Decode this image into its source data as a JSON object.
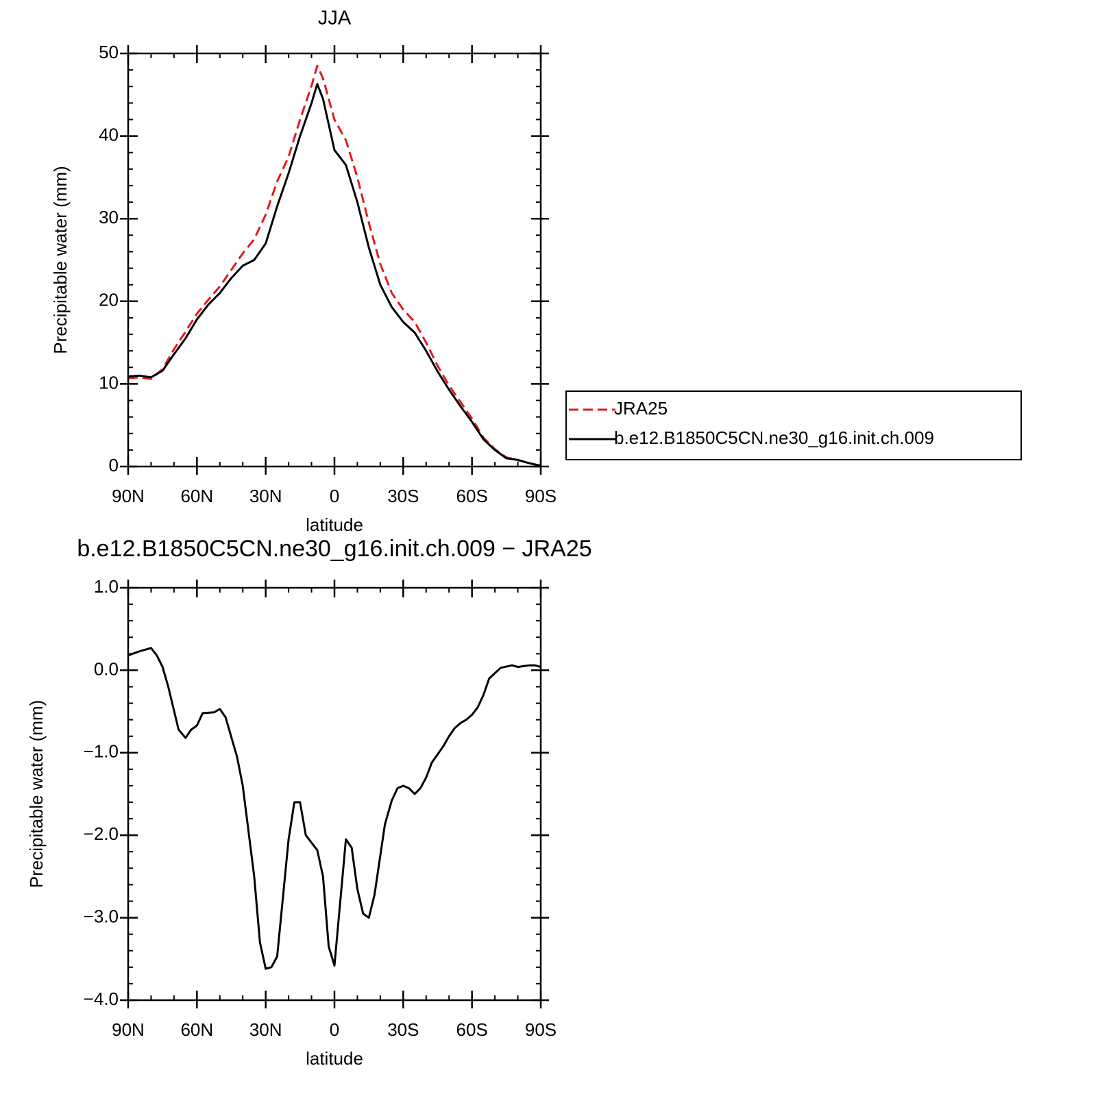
{
  "chart_data": [
    {
      "type": "line",
      "title": "JJA",
      "xlabel": "latitude",
      "ylabel": "Precipitable water (mm)",
      "x": [
        90,
        85,
        80,
        75,
        70,
        65,
        60,
        55,
        50,
        45,
        40,
        35,
        30,
        25,
        20,
        15,
        10,
        7.5,
        5,
        0,
        -5,
        -10,
        -15,
        -20,
        -25,
        -30,
        -35,
        -40,
        -45,
        -50,
        -55,
        -60,
        -65,
        -70,
        -75,
        -80,
        -85,
        -90
      ],
      "series": [
        {
          "name": "JRA25",
          "color": "#e31a1c",
          "line_style": "dashed",
          "values": [
            10.7,
            10.8,
            10.6,
            11.8,
            14.2,
            16.3,
            18.5,
            20.2,
            21.8,
            23.8,
            25.8,
            27.5,
            30.5,
            34.5,
            37.5,
            42.0,
            46.1,
            48.5,
            47.0,
            42.0,
            39.5,
            35.0,
            29.5,
            24.5,
            21.0,
            19.0,
            17.5,
            15.0,
            12.2,
            9.8,
            7.8,
            5.8,
            3.5,
            2.1,
            1.1,
            0.8,
            0.4,
            0.1
          ]
        },
        {
          "name": "b.e12.B1850C5CN.ne30_g16.init.ch.009",
          "color": "#000000",
          "line_style": "solid",
          "values": [
            10.9,
            11.0,
            10.8,
            11.6,
            13.6,
            15.5,
            17.8,
            19.6,
            21.0,
            22.8,
            24.3,
            25.0,
            27.0,
            31.5,
            35.5,
            40.0,
            44.0,
            46.3,
            44.5,
            38.3,
            36.5,
            32.0,
            26.5,
            22.0,
            19.3,
            17.5,
            16.2,
            14.0,
            11.5,
            9.3,
            7.3,
            5.4,
            3.3,
            2.0,
            1.0,
            0.8,
            0.4,
            0.1
          ]
        }
      ],
      "xlim": [
        90,
        -90
      ],
      "xticks": [
        {
          "value": 90,
          "label": "90N"
        },
        {
          "value": 60,
          "label": "60N"
        },
        {
          "value": 30,
          "label": "30N"
        },
        0,
        {
          "value": -30,
          "label": "30S"
        },
        {
          "value": -60,
          "label": "60S"
        },
        {
          "value": -90,
          "label": "90S"
        }
      ],
      "ylim": [
        0,
        50
      ],
      "yticks": [
        0,
        10,
        20,
        30,
        40,
        50
      ],
      "grid": false,
      "legend": "right"
    },
    {
      "type": "line",
      "title": "b.e12.B1850C5CN.ne30_g16.init.ch.009 − JRA25",
      "xlabel": "latitude",
      "ylabel": "Precipitable water (mm)",
      "x": [
        90,
        85,
        80,
        77.5,
        75,
        72.5,
        68,
        65,
        62.5,
        60,
        57.5,
        52.5,
        50,
        47.5,
        42.5,
        40,
        35,
        32.5,
        30,
        27.5,
        25,
        20,
        17.5,
        15,
        12.5,
        7.5,
        5,
        2.5,
        0,
        -5,
        -7.5,
        -10,
        -12.5,
        -15,
        -17.5,
        -22,
        -25,
        -27.5,
        -30,
        -32.5,
        -35,
        -37.5,
        -40,
        -42.5,
        -47.5,
        -50,
        -52.5,
        -55,
        -57.5,
        -60,
        -62.5,
        -65,
        -67.5,
        -72.5,
        -77.5,
        -80,
        -82.5,
        -85,
        -87.5,
        -90
      ],
      "series": [
        {
          "color": "#000000",
          "line_style": "solid",
          "values": [
            0.18,
            0.23,
            0.27,
            0.18,
            0.04,
            -0.2,
            -0.72,
            -0.82,
            -0.72,
            -0.67,
            -0.52,
            -0.51,
            -0.47,
            -0.57,
            -1.05,
            -1.4,
            -2.5,
            -3.3,
            -3.62,
            -3.6,
            -3.47,
            -2.05,
            -1.6,
            -1.6,
            -2.0,
            -2.18,
            -2.5,
            -3.35,
            -3.58,
            -2.05,
            -2.15,
            -2.65,
            -2.95,
            -3.0,
            -2.72,
            -1.87,
            -1.58,
            -1.43,
            -1.4,
            -1.43,
            -1.5,
            -1.43,
            -1.3,
            -1.12,
            -0.92,
            -0.8,
            -0.7,
            -0.64,
            -0.6,
            -0.54,
            -0.45,
            -0.3,
            -0.1,
            0.03,
            0.06,
            0.04,
            0.05,
            0.06,
            0.06,
            0.04
          ]
        }
      ],
      "xlim": [
        90,
        -90
      ],
      "xticks": [
        {
          "value": 90,
          "label": "90N"
        },
        {
          "value": 60,
          "label": "60N"
        },
        {
          "value": 30,
          "label": "30N"
        },
        0,
        {
          "value": -30,
          "label": "30S"
        },
        {
          "value": -60,
          "label": "60S"
        },
        {
          "value": -90,
          "label": "90S"
        }
      ],
      "ylim": [
        -4,
        1
      ],
      "yticks": [
        {
          "value": -4,
          "label": "−4.0"
        },
        {
          "value": -3,
          "label": "−3.0"
        },
        {
          "value": -2,
          "label": "−2.0"
        },
        {
          "value": -1,
          "label": "−1.0"
        },
        {
          "value": 0,
          "label": "0.0"
        },
        {
          "value": 1,
          "label": "1.0"
        }
      ],
      "grid": false
    }
  ]
}
